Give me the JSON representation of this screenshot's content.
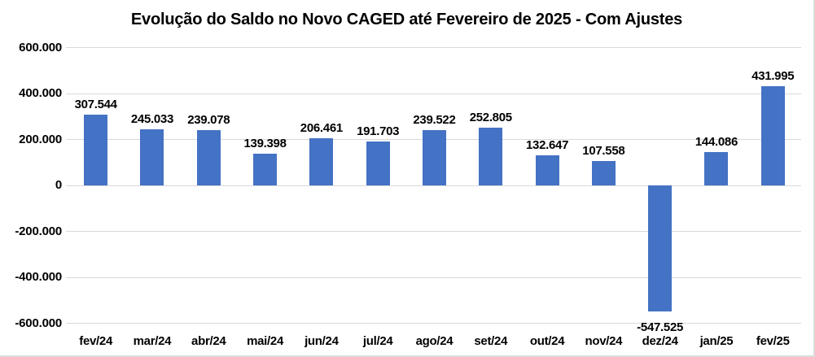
{
  "chart_data": {
    "type": "bar",
    "title": "Evolução do Saldo no Novo CAGED até Fevereiro de 2025 - Com Ajustes",
    "categories": [
      "fev/24",
      "mar/24",
      "abr/24",
      "mai/24",
      "jun/24",
      "jul/24",
      "ago/24",
      "set/24",
      "out/24",
      "nov/24",
      "dez/24",
      "jan/25",
      "fev/25"
    ],
    "values": [
      307544,
      245033,
      239078,
      139398,
      206461,
      191703,
      239522,
      252805,
      132647,
      107558,
      -547525,
      144086,
      431995
    ],
    "value_labels": [
      "307.544",
      "245.033",
      "239.078",
      "139.398",
      "206.461",
      "191.703",
      "239.522",
      "252.805",
      "132.647",
      "107.558",
      "-547.525",
      "144.086",
      "431.995"
    ],
    "y_ticks": [
      {
        "value": 600000,
        "label": "600.000"
      },
      {
        "value": 400000,
        "label": "400.000"
      },
      {
        "value": 200000,
        "label": "200.000"
      },
      {
        "value": 0,
        "label": "0"
      },
      {
        "value": -200000,
        "label": "-200.000"
      },
      {
        "value": -400000,
        "label": "-400.000"
      },
      {
        "value": -600000,
        "label": "-600.000"
      }
    ],
    "ylim": [
      -600000,
      600000
    ],
    "xlabel": "",
    "ylabel": "",
    "grid": true,
    "legend": "none",
    "colors": {
      "bar": "#4472c4",
      "gridline": "#d9d9d9",
      "text": "#000000",
      "background": "#ffffff",
      "chart_border": "#dcdcdc"
    }
  }
}
